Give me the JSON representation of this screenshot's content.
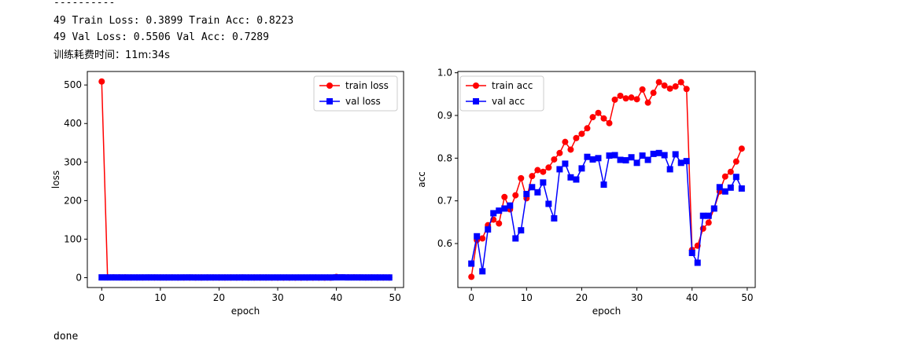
{
  "output": {
    "lines": [
      "----------",
      "49 Train Loss: 0.3899 Train Acc: 0.8223",
      "49 Val Loss: 0.5506 Val Acc: 0.7289",
      "训练耗费时间：11m:34s"
    ],
    "done": "done"
  },
  "colors": {
    "train": "#ff0000",
    "val": "#0000ff"
  },
  "chart_data": [
    {
      "type": "line",
      "xlabel": "epoch",
      "ylabel": "loss",
      "xlim": [
        -2.45,
        51.45
      ],
      "ylim": [
        -25.5,
        535.0
      ],
      "xticks": [
        0,
        10,
        20,
        30,
        40,
        50
      ],
      "yticks": [
        0,
        100,
        200,
        300,
        400,
        500
      ],
      "legend": "top-right",
      "x": [
        0,
        1,
        2,
        3,
        4,
        5,
        6,
        7,
        8,
        9,
        10,
        11,
        12,
        13,
        14,
        15,
        16,
        17,
        18,
        19,
        20,
        21,
        22,
        23,
        24,
        25,
        26,
        27,
        28,
        29,
        30,
        31,
        32,
        33,
        34,
        35,
        36,
        37,
        38,
        39,
        40,
        41,
        42,
        43,
        44,
        45,
        46,
        47,
        48,
        49
      ],
      "series": [
        {
          "name": "train loss",
          "marker": "circle",
          "values": [
            509,
            0.7,
            0.66,
            0.63,
            0.62,
            0.6,
            0.59,
            0.58,
            0.56,
            0.55,
            0.54,
            0.53,
            0.52,
            0.51,
            0.5,
            0.49,
            0.48,
            0.47,
            0.46,
            0.45,
            0.44,
            0.43,
            0.42,
            0.41,
            0.4,
            0.39,
            0.38,
            0.37,
            0.36,
            0.35,
            0.34,
            0.33,
            0.32,
            0.31,
            0.3,
            0.29,
            0.28,
            0.27,
            0.26,
            0.25,
            1.9,
            0.9,
            0.8,
            0.7,
            0.6,
            0.55,
            0.5,
            0.45,
            0.42,
            0.3899
          ]
        },
        {
          "name": "val loss",
          "marker": "square",
          "values": [
            0.75,
            0.7,
            0.72,
            0.68,
            0.66,
            0.64,
            0.63,
            0.65,
            0.7,
            0.68,
            0.62,
            0.61,
            0.62,
            0.6,
            0.66,
            0.7,
            0.6,
            0.58,
            0.62,
            0.62,
            0.6,
            0.58,
            0.59,
            0.58,
            0.65,
            0.58,
            0.57,
            0.59,
            0.58,
            0.6,
            0.59,
            0.6,
            0.57,
            0.58,
            0.58,
            0.58,
            0.62,
            0.58,
            0.6,
            0.58,
            0.85,
            0.9,
            0.7,
            0.7,
            0.7,
            0.62,
            0.65,
            0.62,
            0.6,
            0.5506
          ]
        }
      ]
    },
    {
      "type": "line",
      "xlabel": "epoch",
      "ylabel": "acc",
      "xlim": [
        -2.45,
        51.45
      ],
      "ylim": [
        0.497,
        1.003
      ],
      "xticks": [
        0,
        10,
        20,
        30,
        40,
        50
      ],
      "yticks": [
        0.6,
        0.7,
        0.8,
        0.9,
        1.0
      ],
      "legend": "top-left",
      "x": [
        0,
        1,
        2,
        3,
        4,
        5,
        6,
        7,
        8,
        9,
        10,
        11,
        12,
        13,
        14,
        15,
        16,
        17,
        18,
        19,
        20,
        21,
        22,
        23,
        24,
        25,
        26,
        27,
        28,
        29,
        30,
        31,
        32,
        33,
        34,
        35,
        36,
        37,
        38,
        39,
        40,
        41,
        42,
        43,
        44,
        45,
        46,
        47,
        48,
        49
      ],
      "series": [
        {
          "name": "train acc",
          "marker": "circle",
          "values": [
            0.522,
            0.608,
            0.612,
            0.643,
            0.656,
            0.647,
            0.709,
            0.68,
            0.713,
            0.753,
            0.706,
            0.758,
            0.772,
            0.768,
            0.778,
            0.797,
            0.812,
            0.838,
            0.82,
            0.847,
            0.857,
            0.87,
            0.896,
            0.906,
            0.893,
            0.882,
            0.937,
            0.946,
            0.94,
            0.942,
            0.938,
            0.961,
            0.93,
            0.953,
            0.978,
            0.97,
            0.963,
            0.968,
            0.978,
            0.962,
            0.585,
            0.595,
            0.635,
            0.649,
            0.682,
            0.722,
            0.757,
            0.768,
            0.792,
            0.8223
          ]
        },
        {
          "name": "val acc",
          "marker": "square",
          "values": [
            0.553,
            0.617,
            0.535,
            0.633,
            0.671,
            0.677,
            0.682,
            0.689,
            0.612,
            0.631,
            0.716,
            0.732,
            0.72,
            0.743,
            0.693,
            0.659,
            0.774,
            0.787,
            0.755,
            0.75,
            0.776,
            0.803,
            0.797,
            0.8,
            0.738,
            0.806,
            0.807,
            0.796,
            0.795,
            0.802,
            0.789,
            0.806,
            0.796,
            0.81,
            0.812,
            0.807,
            0.774,
            0.809,
            0.789,
            0.793,
            0.578,
            0.555,
            0.665,
            0.665,
            0.682,
            0.732,
            0.722,
            0.731,
            0.756,
            0.7289
          ]
        }
      ]
    }
  ]
}
